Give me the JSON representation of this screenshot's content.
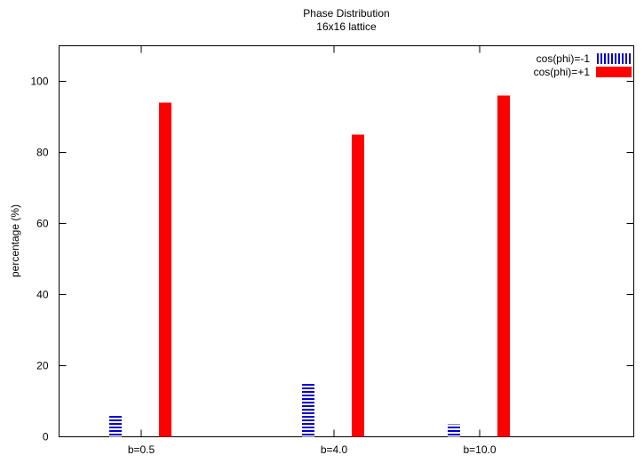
{
  "chart_data": {
    "type": "bar",
    "title": "Phase Distribution",
    "subtitle": "16x16 lattice",
    "xlabel": "",
    "ylabel": "percentage (%)",
    "ylim": [
      0,
      110
    ],
    "y_ticks": [
      0,
      20,
      40,
      60,
      80,
      100
    ],
    "categories": [
      "b=0.5",
      "b=4.0",
      "b=10.0"
    ],
    "legend_position": "top-right",
    "grid": false,
    "series": [
      {
        "name": "cos(phi)=-1",
        "values": [
          6,
          15,
          3.5
        ],
        "color": "#0000cc",
        "pattern": "horizontal-stripes"
      },
      {
        "name": "cos(phi)=+1",
        "values": [
          94,
          85,
          96
        ],
        "color": "#ff0000",
        "pattern": "solid"
      }
    ]
  }
}
